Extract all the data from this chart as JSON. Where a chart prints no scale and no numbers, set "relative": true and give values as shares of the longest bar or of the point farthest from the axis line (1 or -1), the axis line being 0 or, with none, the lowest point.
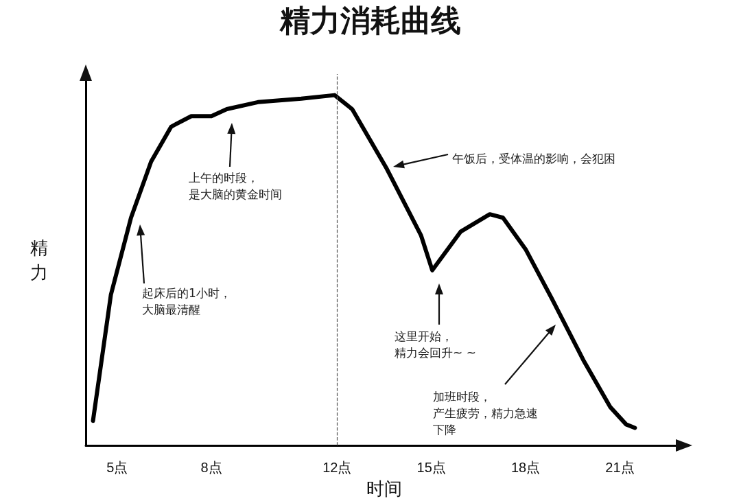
{
  "chart_data": {
    "type": "line",
    "title": "精力消耗曲线",
    "xlabel": "时间",
    "ylabel": "精力",
    "relative": true,
    "x": [
      4.23,
      4.8,
      5.44,
      6.08,
      6.72,
      7.36,
      8,
      8.49,
      9.48,
      10.86,
      11.92,
      12.48,
      13.58,
      14.67,
      15.03,
      15.93,
      16.86,
      17.28,
      18,
      18.83,
      19.86,
      20.69,
      21.2,
      21.48
    ],
    "series": [
      {
        "color": "#000000",
        "values": [
          0.07,
          0.43,
          0.65,
          0.81,
          0.91,
          0.94,
          0.94,
          0.96,
          0.98,
          0.99,
          1,
          0.96,
          0.79,
          0.6,
          0.5,
          0.61,
          0.66,
          0.65,
          0.56,
          0.42,
          0.24,
          0.11,
          0.06,
          0.05
        ]
      }
    ],
    "xlim": [
      4,
      23
    ],
    "xticks": [
      {
        "value": 5,
        "label": "5点"
      },
      {
        "value": 8,
        "label": "8点"
      },
      {
        "value": 12,
        "label": "12点"
      },
      {
        "value": 15,
        "label": "15点"
      },
      {
        "value": 18,
        "label": "18点"
      },
      {
        "value": 21,
        "label": "21点"
      }
    ],
    "ref_lines": [
      {
        "axis": "x",
        "value": 12,
        "label": null,
        "color": "#555555",
        "line_style": "dashed"
      }
    ],
    "annotations": [
      "起床后的1小时，",
      "大脑最清醒",
      "上午的时段，",
      "是大脑的黄金时间",
      "午饭后，受体温的影响，会犯困",
      "这里开始，",
      "精力会回升~ ~",
      "加班时段，",
      "产生疲劳，精力急速",
      "下降"
    ],
    "marker": "none",
    "line_style": "solid"
  }
}
